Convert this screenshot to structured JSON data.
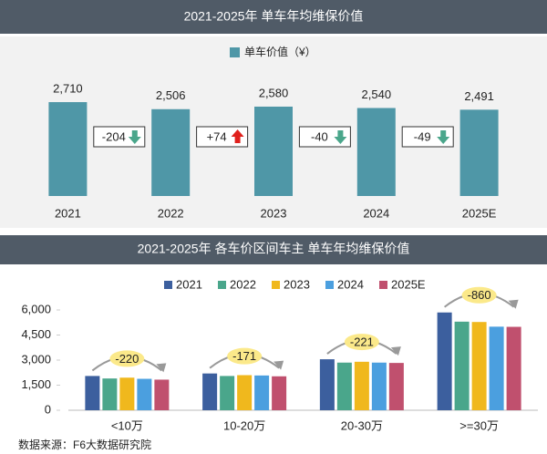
{
  "chart_data": [
    {
      "type": "bar",
      "title": "2021-2025年 单车年均维保价值",
      "legend": "单车价值（¥）",
      "color": "#4f97a7",
      "categories": [
        "2021",
        "2022",
        "2023",
        "2024",
        "2025E"
      ],
      "values": [
        2710,
        2506,
        2580,
        2540,
        2491
      ],
      "value_labels": [
        "2,710",
        "2,506",
        "2,580",
        "2,540",
        "2,491"
      ],
      "ylim": [
        0,
        3000
      ],
      "annotations": [
        {
          "label": "-204",
          "direction": "down"
        },
        {
          "label": "+74",
          "direction": "up"
        },
        {
          "label": "-40",
          "direction": "down"
        },
        {
          "label": "-49",
          "direction": "down"
        }
      ]
    },
    {
      "type": "bar",
      "title": "2021-2025年 各车价区间车主 单车年均维保价值",
      "categories": [
        "<10万",
        "10-20万",
        "20-30万",
        ">=30万"
      ],
      "series": [
        {
          "name": "2021",
          "color": "#3c5f9e",
          "values": [
            2050,
            2200,
            3050,
            5850
          ]
        },
        {
          "name": "2022",
          "color": "#4aa68b",
          "values": [
            1900,
            2050,
            2850,
            5300
          ]
        },
        {
          "name": "2023",
          "color": "#f0b81d",
          "values": [
            1950,
            2100,
            2900,
            5280
          ]
        },
        {
          "name": "2024",
          "color": "#4b9fdf",
          "values": [
            1880,
            2080,
            2850,
            5000
          ]
        },
        {
          "name": "2025E",
          "color": "#c0506e",
          "values": [
            1830,
            2030,
            2830,
            4990
          ]
        }
      ],
      "ylim": [
        0,
        6000
      ],
      "yticks": [
        0,
        {
          "value": 1500,
          "label": "1,500"
        },
        {
          "value": 3000,
          "label": "3,000"
        },
        {
          "value": 4500,
          "label": "4,500"
        },
        {
          "value": 6000,
          "label": "6,000"
        }
      ],
      "annotations": [
        "-220",
        "-171",
        "-221",
        "-860"
      ],
      "source": "数据来源：F6大数据研究院"
    }
  ]
}
